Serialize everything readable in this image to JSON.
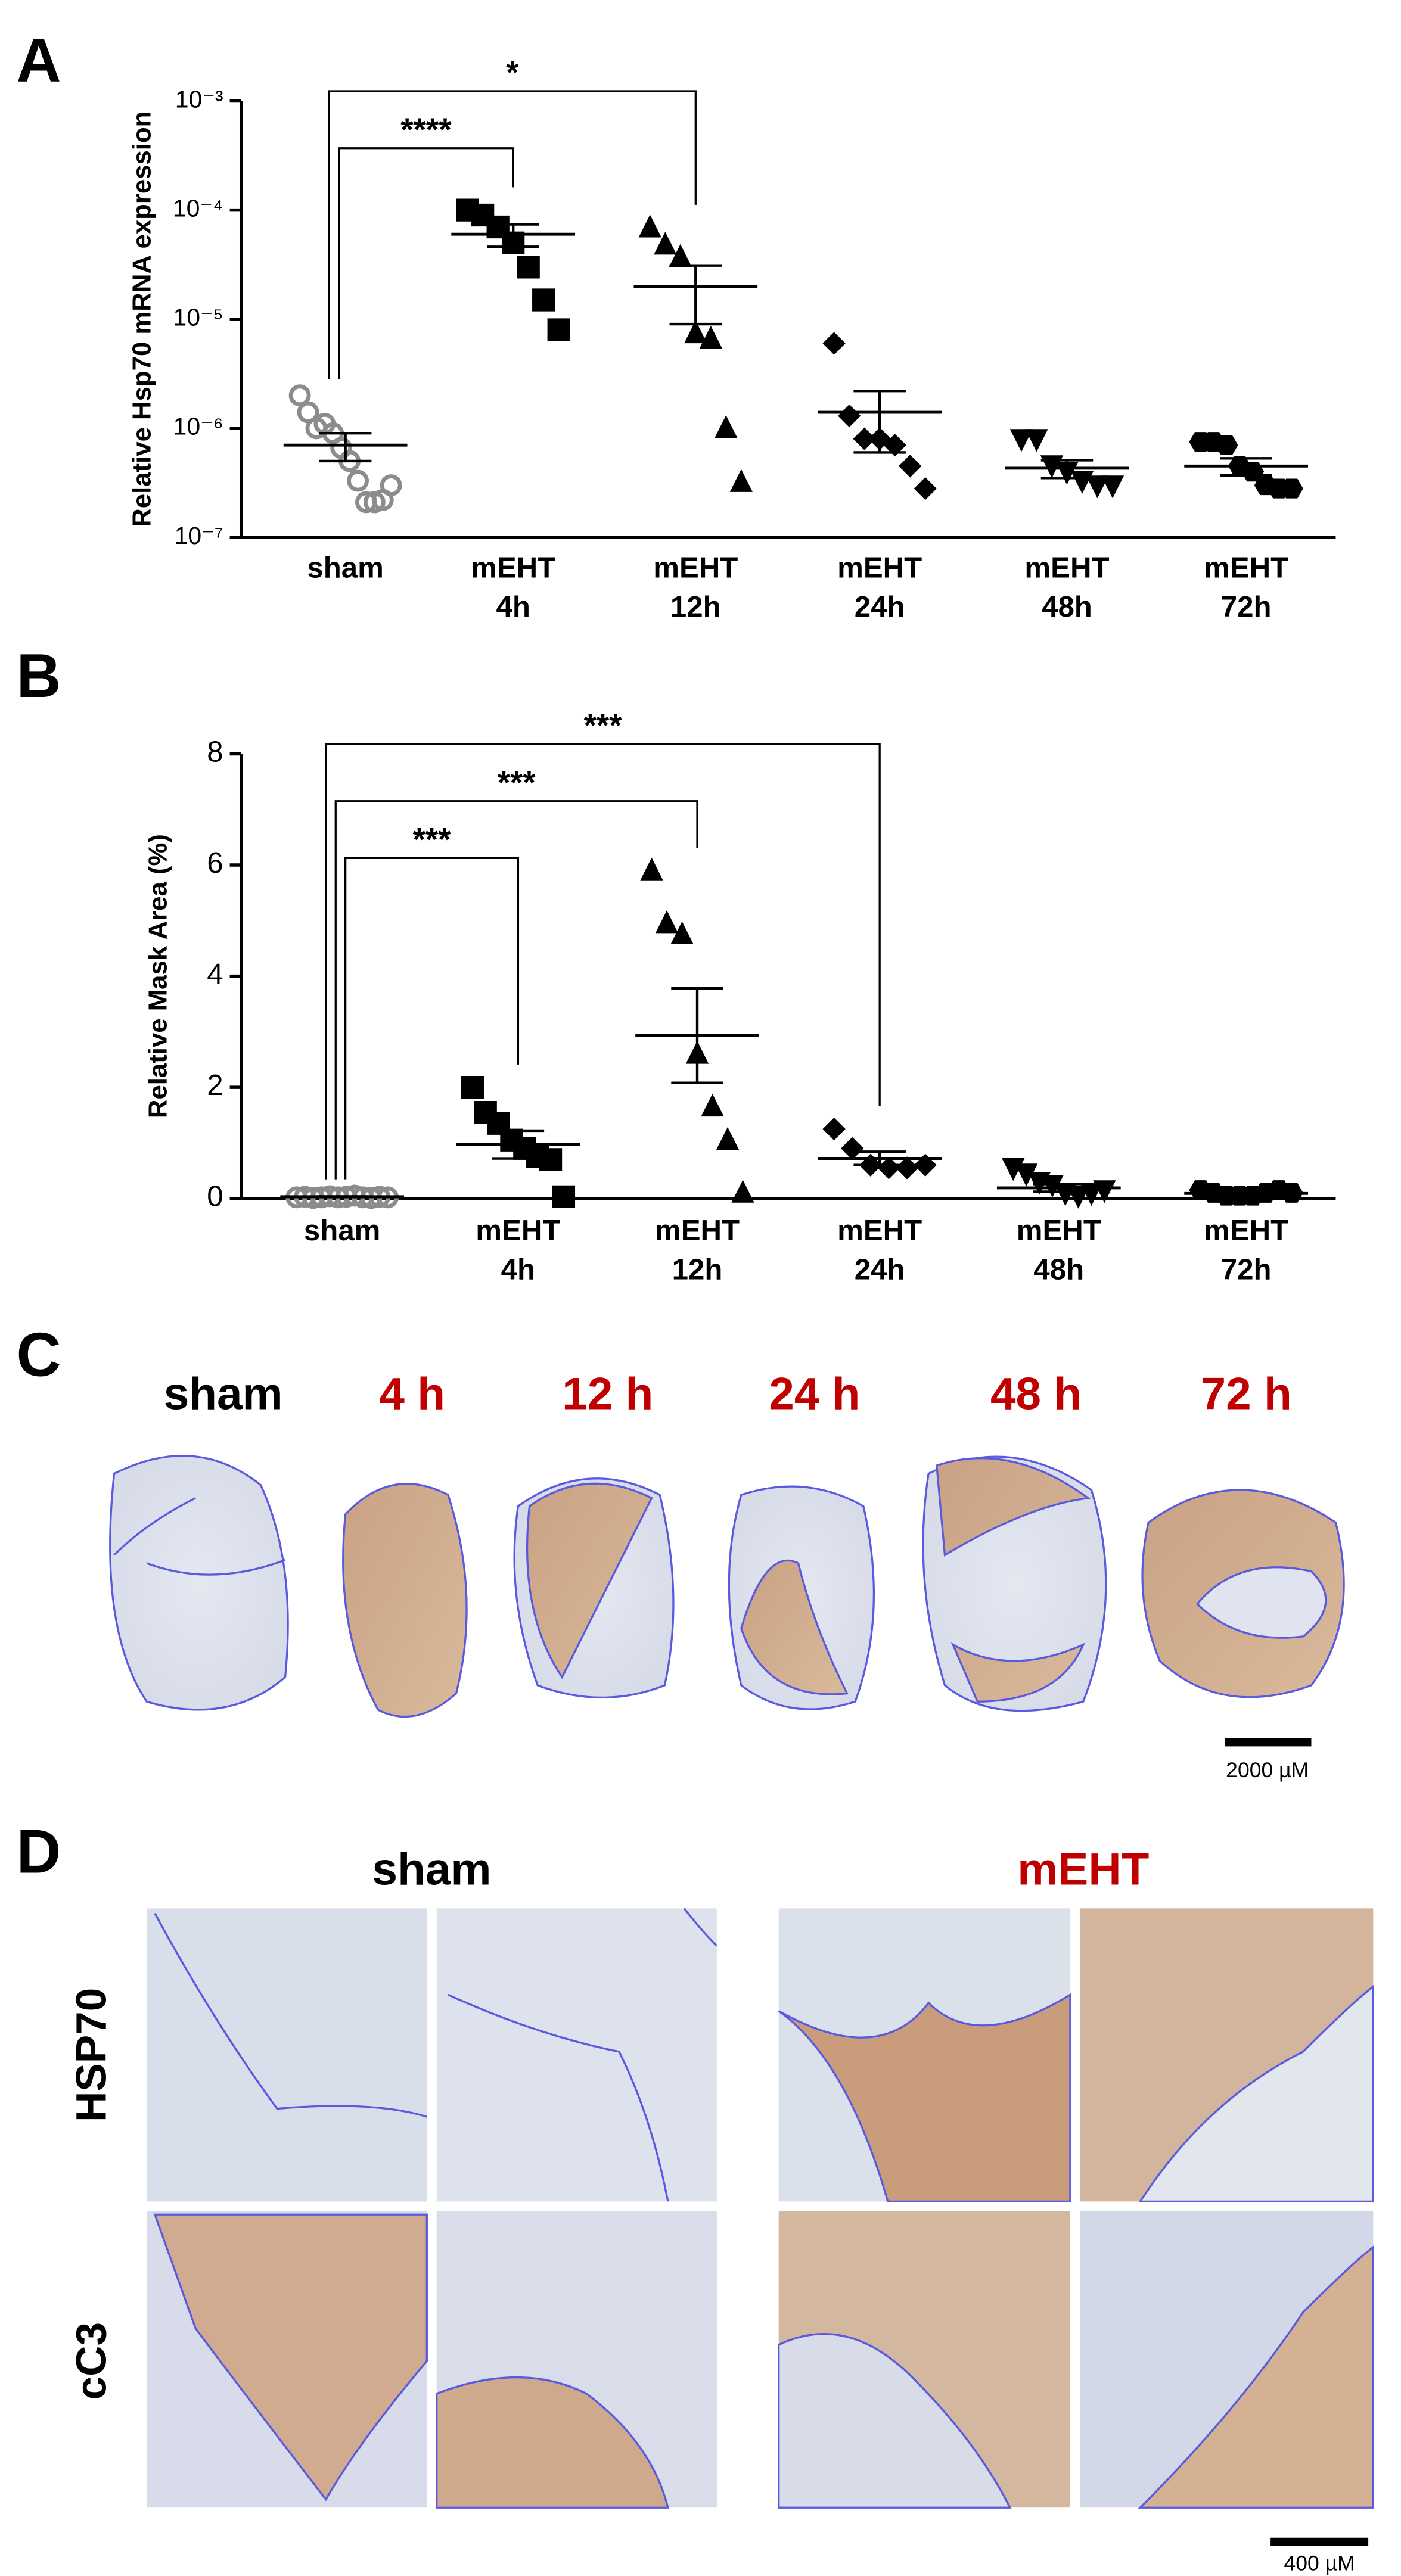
{
  "panel_labels": [
    "A",
    "B",
    "C",
    "D"
  ],
  "chart_data": [
    {
      "type": "scatter",
      "ylabel": "Relative Hsp70 mRNA expression",
      "log_scale": true,
      "ylim": [
        1e-07,
        0.001
      ],
      "yticks": [
        {
          "value": 1e-07,
          "label": "10⁻⁷"
        },
        {
          "value": 1e-06,
          "label": "10⁻⁶"
        },
        {
          "value": 1e-05,
          "label": "10⁻⁵"
        },
        {
          "value": 0.0001,
          "label": "10⁻⁴"
        },
        {
          "value": 0.001,
          "label": "10⁻³"
        }
      ],
      "categories": [
        "sham",
        "mEHT 4h",
        "mEHT 12h",
        "mEHT 24h",
        "mEHT 48h",
        "mEHT 72h"
      ],
      "markers": [
        "open-circle",
        "square",
        "triangle",
        "diamond",
        "down-triangle",
        "hexagon"
      ],
      "colors": [
        "#8c8c8c",
        "#000000",
        "#000000",
        "#000000",
        "#000000",
        "#000000"
      ],
      "values": [
        [
          2e-06,
          1.4e-06,
          1e-06,
          1.1e-06,
          9e-07,
          6.6e-07,
          5e-07,
          3.3e-07,
          2.1e-07,
          2.1e-07,
          2.2e-07,
          3e-07
        ],
        [
          0.0001,
          9e-05,
          7e-05,
          5e-05,
          3e-05,
          1.5e-05,
          8e-06
        ],
        [
          6.9e-05,
          4.8e-05,
          3.7e-05,
          7.4e-06,
          6.6e-06,
          1e-06,
          3.2e-07
        ],
        [
          6e-06,
          1.3e-06,
          8e-07,
          8e-07,
          7e-07,
          4.5e-07,
          2.8e-07
        ],
        [
          8e-07,
          8e-07,
          4.6e-07,
          4e-07,
          3.3e-07,
          3e-07,
          3e-07
        ],
        [
          7.5e-07,
          7.5e-07,
          7e-07,
          4.5e-07,
          4e-07,
          3e-07,
          2.8e-07,
          2.8e-07
        ]
      ],
      "means": [
        7e-07,
        6e-05,
        2e-05,
        1.4e-06,
        4.3e-07,
        4.5e-07
      ],
      "sems": [
        2e-07,
        1.4e-05,
        1.1e-05,
        8e-07,
        8e-08,
        8e-08
      ],
      "brackets": [
        {
          "from": 0,
          "to": 2,
          "label": "*"
        },
        {
          "from": 0,
          "to": 1,
          "label": "****"
        }
      ]
    },
    {
      "type": "scatter",
      "ylabel": "Relative Mask Area (%)",
      "log_scale": false,
      "ylim": [
        0,
        8
      ],
      "yticks": [
        0,
        2,
        4,
        6,
        8
      ],
      "categories": [
        "sham",
        "mEHT 4h",
        "mEHT 12h",
        "mEHT 24h",
        "mEHT 48h",
        "mEHT 72h"
      ],
      "markers": [
        "open-circle",
        "square",
        "triangle",
        "diamond",
        "down-triangle",
        "hexagon"
      ],
      "colors": [
        "#8c8c8c",
        "#000000",
        "#000000",
        "#000000",
        "#000000",
        "#000000"
      ],
      "values": [
        [
          0.02,
          0.03,
          0.01,
          0.02,
          0.04,
          0.02,
          0.03,
          0.05,
          0.02,
          0.01,
          0.03,
          0.02
        ],
        [
          2.0,
          1.55,
          1.35,
          1.05,
          0.9,
          0.75,
          0.7,
          0.03
        ],
        [
          5.9,
          4.95,
          4.75,
          2.6,
          1.65,
          1.05,
          0.1
        ],
        [
          1.25,
          0.9,
          0.6,
          0.55,
          0.55,
          0.6
        ],
        [
          0.55,
          0.45,
          0.3,
          0.25,
          0.1,
          0.05,
          0.1,
          0.15
        ],
        [
          0.15,
          0.1,
          0.05,
          0.05,
          0.05,
          0.1,
          0.15,
          0.1
        ]
      ],
      "means": [
        0.03,
        0.97,
        2.93,
        0.72,
        0.19,
        0.09
      ],
      "sems": [
        0.005,
        0.25,
        0.85,
        0.12,
        0.07,
        0.02
      ],
      "brackets": [
        {
          "from": 0,
          "to": 3,
          "label": "***"
        },
        {
          "from": 0,
          "to": 2,
          "label": "***"
        },
        {
          "from": 0,
          "to": 1,
          "label": "***"
        }
      ]
    }
  ],
  "panel_c": {
    "labels": [
      "sham",
      "4 h",
      "12 h",
      "24 h",
      "48 h",
      "72 h"
    ],
    "label_colors": [
      "#000000",
      "#c00000",
      "#c00000",
      "#c00000",
      "#c00000",
      "#c00000"
    ],
    "scale_bar": "2000 µM"
  },
  "panel_d": {
    "columns": [
      "sham",
      "mEHT"
    ],
    "column_colors": [
      "#000000",
      "#c00000"
    ],
    "rows": [
      "HSP70",
      "cC3"
    ],
    "scale_bar": "400 µM"
  }
}
